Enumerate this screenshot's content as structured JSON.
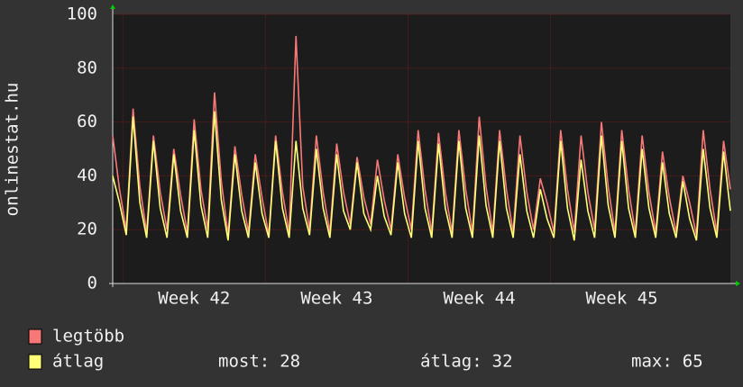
{
  "chart_data": {
    "type": "line",
    "y_label": "onlinestat.hu",
    "categories": [
      null,
      null,
      null,
      null,
      null,
      null,
      null,
      null,
      null,
      null,
      null,
      null,
      "Week 42",
      null,
      null,
      null,
      null,
      null,
      null,
      null,
      null,
      null,
      null,
      null,
      null,
      null,
      null,
      null,
      null,
      null,
      null,
      null,
      null,
      "Week 43",
      null,
      null,
      null,
      null,
      null,
      null,
      null,
      null,
      null,
      null,
      null,
      null,
      null,
      null,
      null,
      null,
      null,
      null,
      null,
      null,
      "Week 44",
      null,
      null,
      null,
      null,
      null,
      null,
      null,
      null,
      null,
      null,
      null,
      null,
      null,
      null,
      null,
      null,
      null,
      null,
      null,
      null,
      "Week 45",
      null,
      null,
      null,
      null,
      null,
      null,
      null,
      null,
      null,
      null,
      null,
      null,
      null,
      null,
      null,
      null
    ],
    "series": [
      {
        "name": "legtöbb",
        "color": "#f87878",
        "values": [
          55,
          35,
          20,
          65,
          36,
          19,
          55,
          34,
          20,
          50,
          33,
          19,
          61,
          35,
          20,
          71,
          38,
          18,
          51,
          33,
          19,
          48,
          32,
          18,
          55,
          34,
          19,
          92,
          36,
          20,
          55,
          34,
          19,
          52,
          34,
          22,
          47,
          32,
          22,
          46,
          31,
          20,
          48,
          32,
          20,
          57,
          35,
          19,
          56,
          34,
          19,
          57,
          35,
          19,
          62,
          36,
          19,
          57,
          35,
          19,
          55,
          34,
          20,
          39,
          30,
          19,
          57,
          35,
          19,
          55,
          34,
          20,
          60,
          36,
          19,
          57,
          35,
          19,
          55,
          34,
          19,
          49,
          32,
          19,
          40,
          30,
          18,
          57,
          35,
          19,
          53,
          35
        ]
      },
      {
        "name": "átlag",
        "color": "#ffff78",
        "values": [
          40,
          30,
          18,
          62,
          30,
          17,
          53,
          28,
          17,
          48,
          27,
          17,
          57,
          29,
          17,
          64,
          31,
          16,
          48,
          27,
          17,
          45,
          26,
          17,
          53,
          28,
          17,
          53,
          28,
          18,
          50,
          28,
          17,
          48,
          27,
          20,
          45,
          26,
          20,
          40,
          25,
          18,
          45,
          26,
          17,
          53,
          28,
          17,
          52,
          28,
          17,
          53,
          28,
          17,
          55,
          29,
          17,
          53,
          28,
          17,
          48,
          27,
          17,
          35,
          24,
          17,
          53,
          28,
          16,
          46,
          27,
          17,
          55,
          29,
          17,
          53,
          28,
          17,
          50,
          28,
          17,
          45,
          26,
          17,
          38,
          24,
          16,
          50,
          28,
          17,
          49,
          27
        ]
      }
    ],
    "stats": [
      {
        "label": "most:",
        "value": 28
      },
      {
        "label": "átlag:",
        "value": 32
      },
      {
        "label": "max:",
        "value": 65
      }
    ],
    "ylim": [
      0,
      100
    ],
    "yticks": [
      0,
      20,
      40,
      60,
      80,
      100
    ],
    "grid": true
  }
}
